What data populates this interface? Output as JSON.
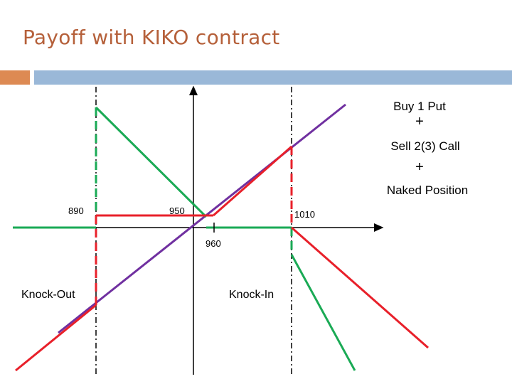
{
  "title": "Payoff with KIKO contract",
  "legend": {
    "line1": "Buy 1 Put",
    "plus1": "+",
    "line2": "Sell 2(3) Call",
    "plus2": "+",
    "line3": "Naked Position"
  },
  "labels": {
    "k890": "890",
    "k950": "950",
    "k960": "960",
    "k1010": "1010",
    "knock_out": "Knock-Out",
    "knock_in": "Knock-In"
  },
  "colors": {
    "title": "#b5603a",
    "accent_bar": "#dd8a53",
    "main_bar": "#9ab8d8",
    "green": "#1aaa55",
    "red": "#e8202a",
    "purple": "#7030a0"
  }
}
